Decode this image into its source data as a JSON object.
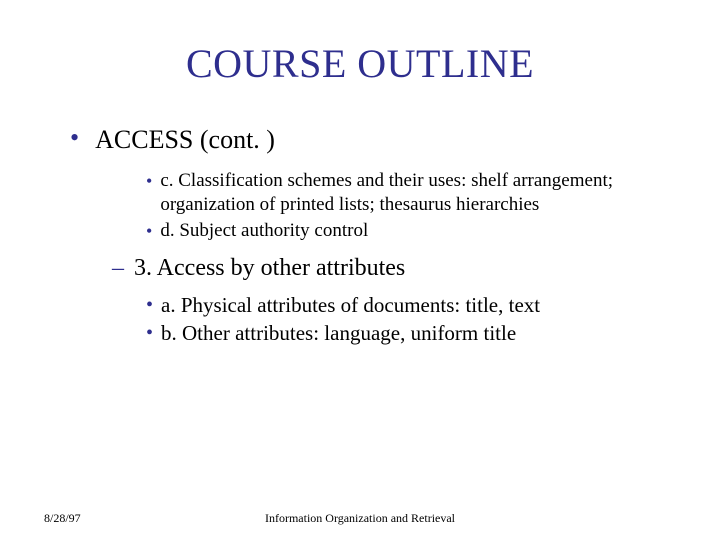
{
  "title": "COURSE OUTLINE",
  "level1_text": "ACCESS (cont. )",
  "sub_c": "c. Classification schemes and their uses: shelf arrangement; organization of printed lists; thesaurus hierarchies",
  "sub_d": "d. Subject authority control",
  "dash_text": "3. Access by other attributes",
  "sub_a": "a. Physical attributes of documents: title, text",
  "sub_b": "b. Other attributes: language, uniform title",
  "footer_date": "8/28/97",
  "footer_title": "Information Organization and Retrieval",
  "colors": {
    "title_color": "#2e2e8e",
    "bullet_color": "#2e2e8e",
    "text_color": "#000000",
    "background": "#ffffff"
  },
  "typography": {
    "title_fontsize": 40,
    "level1_fontsize": 26,
    "level2_fontsize": 19,
    "dash_fontsize": 24,
    "level2b_fontsize": 21,
    "footer_fontsize": 12,
    "font_family": "Times New Roman"
  }
}
